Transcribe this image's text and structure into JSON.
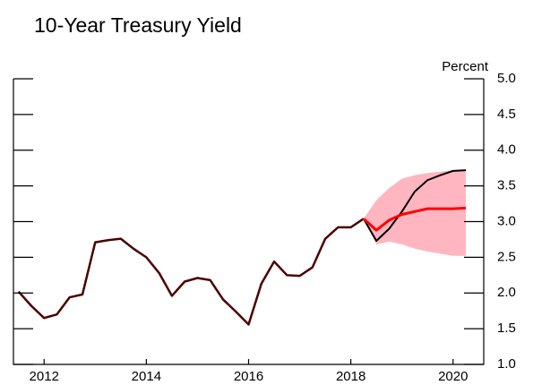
{
  "chart_data": {
    "type": "line",
    "title": "10-Year Treasury Yield",
    "y_label": "Percent",
    "xlim": [
      2011.4,
      2020.6
    ],
    "xticks": [
      2012,
      2014,
      2016,
      2018,
      2020
    ],
    "ylim": [
      1,
      5
    ],
    "yticks": [
      {
        "value": 1,
        "label": "1.0"
      },
      {
        "value": 1.5,
        "label": "1.5"
      },
      {
        "value": 2,
        "label": "2.0"
      },
      {
        "value": 2.5,
        "label": "2.5"
      },
      {
        "value": 3,
        "label": "3.0"
      },
      {
        "value": 3.5,
        "label": "3.5"
      },
      {
        "value": 4,
        "label": "4.0"
      },
      {
        "value": 4.5,
        "label": "4.5"
      },
      {
        "value": 5,
        "label": "5.0"
      }
    ],
    "band": {
      "color": "#ffb6c1",
      "x": [
        2018.25,
        2018.5,
        2018.75,
        2019,
        2019.25,
        2019.5,
        2019.75,
        2020,
        2020.25
      ],
      "upper": [
        3.04,
        3.3,
        3.47,
        3.6,
        3.65,
        3.68,
        3.7,
        3.72,
        3.72
      ],
      "lower": [
        3.04,
        2.68,
        2.72,
        2.68,
        2.62,
        2.58,
        2.55,
        2.52,
        2.52
      ]
    },
    "series": [
      {
        "color": "#4a0000",
        "width": 2.5,
        "x": [
          2011.5,
          2011.75,
          2012,
          2012.25,
          2012.5,
          2012.75,
          2013,
          2013.25,
          2013.5,
          2013.75,
          2014,
          2014.25,
          2014.5,
          2014.75,
          2015,
          2015.25,
          2015.5,
          2015.75,
          2016,
          2016.25,
          2016.5,
          2016.75,
          2017,
          2017.25,
          2017.5,
          2017.75,
          2018,
          2018.25
        ],
        "values": [
          2.02,
          1.82,
          1.65,
          1.7,
          1.94,
          1.98,
          2.71,
          2.74,
          2.76,
          2.62,
          2.5,
          2.28,
          1.96,
          2.16,
          2.21,
          2.18,
          1.91,
          1.74,
          1.56,
          2.13,
          2.44,
          2.25,
          2.24,
          2.36,
          2.76,
          2.92,
          2.92,
          3.04
        ]
      },
      {
        "color": "#000000",
        "width": 2,
        "x": [
          2018.25,
          2018.5,
          2018.75,
          2019,
          2019.25,
          2019.5,
          2019.75,
          2020,
          2020.25
        ],
        "values": [
          3.04,
          2.73,
          2.9,
          3.14,
          3.42,
          3.58,
          3.65,
          3.71,
          3.72
        ]
      },
      {
        "color": "#ff0000",
        "width": 3,
        "x": [
          2018.25,
          2018.5,
          2018.75,
          2019,
          2019.25,
          2019.5,
          2019.75,
          2020,
          2020.25
        ],
        "values": [
          3.04,
          2.88,
          3.02,
          3.1,
          3.14,
          3.18,
          3.18,
          3.18,
          3.19
        ]
      }
    ]
  }
}
